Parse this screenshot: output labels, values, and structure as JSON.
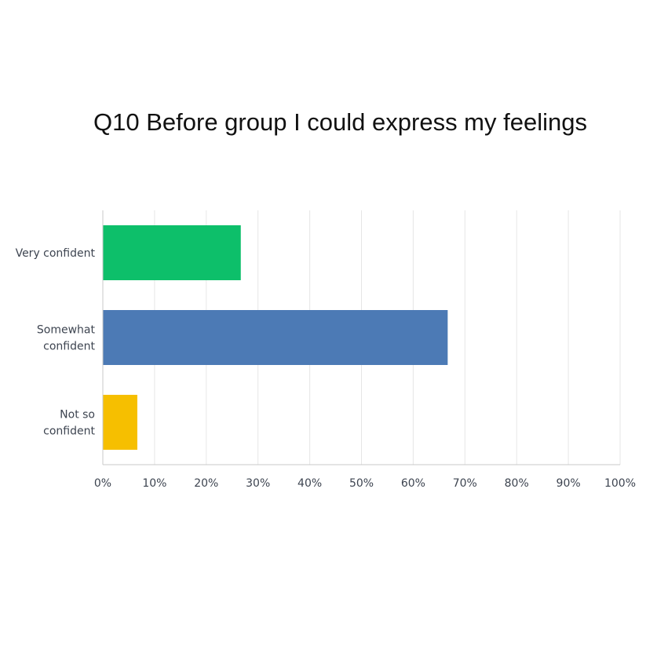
{
  "chart_data": {
    "type": "bar",
    "orientation": "horizontal",
    "title": "Q10 Before group I could express my feelings",
    "categories": [
      [
        "Very confident"
      ],
      [
        "Somewhat",
        "confident"
      ],
      [
        "Not so",
        "confident"
      ]
    ],
    "values": [
      26.67,
      66.67,
      6.67
    ],
    "colors": [
      "#0dbf6a",
      "#4c7ab5",
      "#f6bf00"
    ],
    "xlim": [
      0,
      100
    ],
    "xticks": [
      "0%",
      "10%",
      "20%",
      "30%",
      "40%",
      "50%",
      "60%",
      "70%",
      "80%",
      "90%",
      "100%"
    ],
    "xlabel": "",
    "ylabel": "",
    "grid": true
  }
}
